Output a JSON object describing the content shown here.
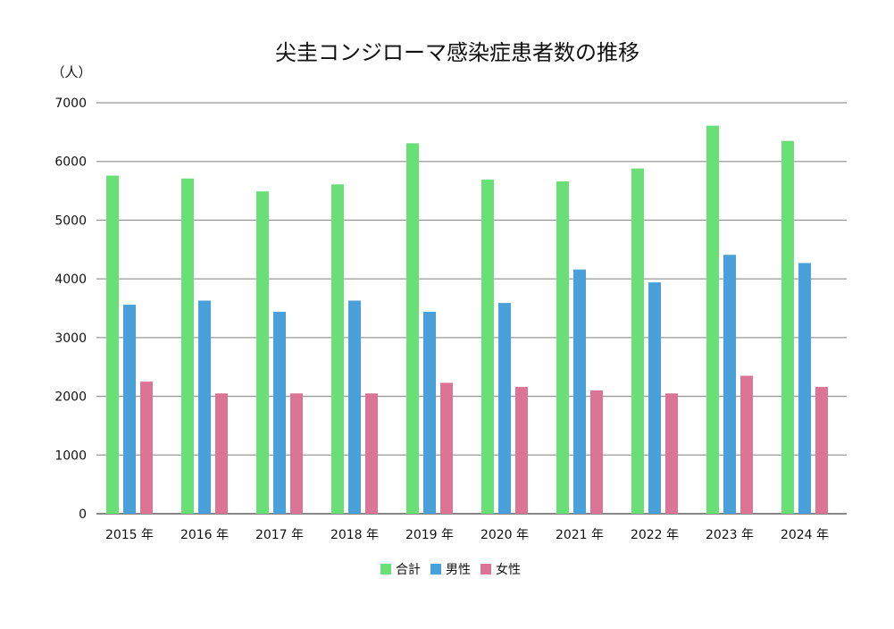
{
  "chart_data": {
    "type": "bar",
    "title": "尖圭コンジローマ感染症患者数の推移",
    "ylabel": "（人）",
    "xlabel": "",
    "ylim": [
      0,
      7000
    ],
    "yticks": [
      0,
      1000,
      2000,
      3000,
      4000,
      5000,
      6000,
      7000
    ],
    "grid": true,
    "legend_position": "bottom",
    "categories": [
      "2015 年",
      "2016 年",
      "2017 年",
      "2018 年",
      "2019 年",
      "2020 年",
      "2021 年",
      "2022 年",
      "2023 年",
      "2024 年"
    ],
    "series": [
      {
        "name": "合計",
        "color": "#68e075",
        "values": [
          5760,
          5710,
          5490,
          5610,
          6310,
          5690,
          5660,
          5880,
          6610,
          6350
        ]
      },
      {
        "name": "男性",
        "color": "#4aa0d9",
        "values": [
          3560,
          3630,
          3440,
          3630,
          3440,
          3590,
          4160,
          3940,
          4410,
          4270
        ]
      },
      {
        "name": "女性",
        "color": "#dc7496",
        "values": [
          2250,
          2050,
          2050,
          2050,
          2230,
          2160,
          2100,
          2050,
          2350,
          2160
        ]
      }
    ]
  }
}
